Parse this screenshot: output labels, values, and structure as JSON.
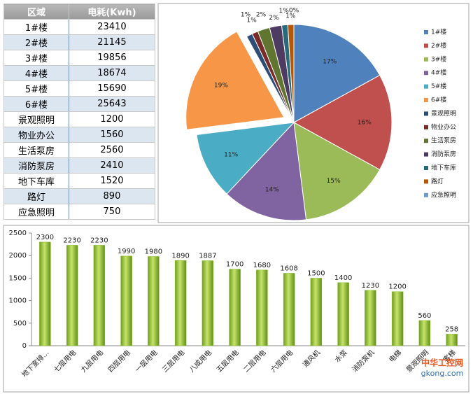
{
  "table": {
    "header": [
      "区域",
      "电耗(Kwh)"
    ],
    "rows": [
      [
        "1#楼",
        23410
      ],
      [
        "2#楼",
        21145
      ],
      [
        "3#楼",
        19856
      ],
      [
        "4#楼",
        18674
      ],
      [
        "5#楼",
        15690
      ],
      [
        "6#楼",
        25643
      ],
      [
        "景观照明",
        1200
      ],
      [
        "物业办公",
        1560
      ],
      [
        "生活泵房",
        2560
      ],
      [
        "消防泵房",
        2410
      ],
      [
        "地下车库",
        1520
      ],
      [
        "路灯",
        890
      ],
      [
        "应急照明",
        750
      ]
    ]
  },
  "chart_data": [
    {
      "type": "pie",
      "categories": [
        "1#楼",
        "2#楼",
        "3#楼",
        "4#楼",
        "5#楼",
        "6#楼",
        "景观照明",
        "物业办公",
        "生活泵房",
        "消防泵房",
        "地下车库",
        "路灯",
        "应急照明"
      ],
      "values": [
        17,
        16,
        15,
        14,
        11,
        19,
        1,
        1,
        2,
        2,
        1,
        1,
        0
      ],
      "value_labels": [
        "17%",
        "16%",
        "15%",
        "14%",
        "11%",
        "19%",
        "1%",
        "1%",
        "2%",
        "2%",
        "1%",
        "1%",
        "0%"
      ],
      "colors": [
        "#4f81bd",
        "#c0504d",
        "#9bbb59",
        "#8064a2",
        "#4bacc6",
        "#f79646",
        "#2c4d75",
        "#772c2a",
        "#5f7530",
        "#4d3b62",
        "#276a7c",
        "#b65708",
        "#729aca"
      ],
      "explode": 5,
      "legend": "right"
    },
    {
      "type": "bar",
      "categories": [
        "地下室排…",
        "七层用电",
        "九层用电",
        "四层用电",
        "一层用电",
        "三层用电",
        "八成用电",
        "五层用电",
        "二层用电",
        "六层用电",
        "通风机",
        "水泵",
        "消防泵机",
        "电梯",
        "景观照明",
        "客梯"
      ],
      "values": [
        2300,
        2230,
        2230,
        1990,
        1980,
        1890,
        1887,
        1700,
        1680,
        1608,
        1500,
        1400,
        1230,
        1200,
        560,
        258
      ],
      "color": "#8cbf2f",
      "ylim": [
        0,
        2500
      ],
      "yticks": [
        0,
        500,
        1000,
        1500,
        2000,
        2500
      ],
      "grid": false
    }
  ],
  "watermark": {
    "name": "中华工控网",
    "url": "gkong.com"
  }
}
